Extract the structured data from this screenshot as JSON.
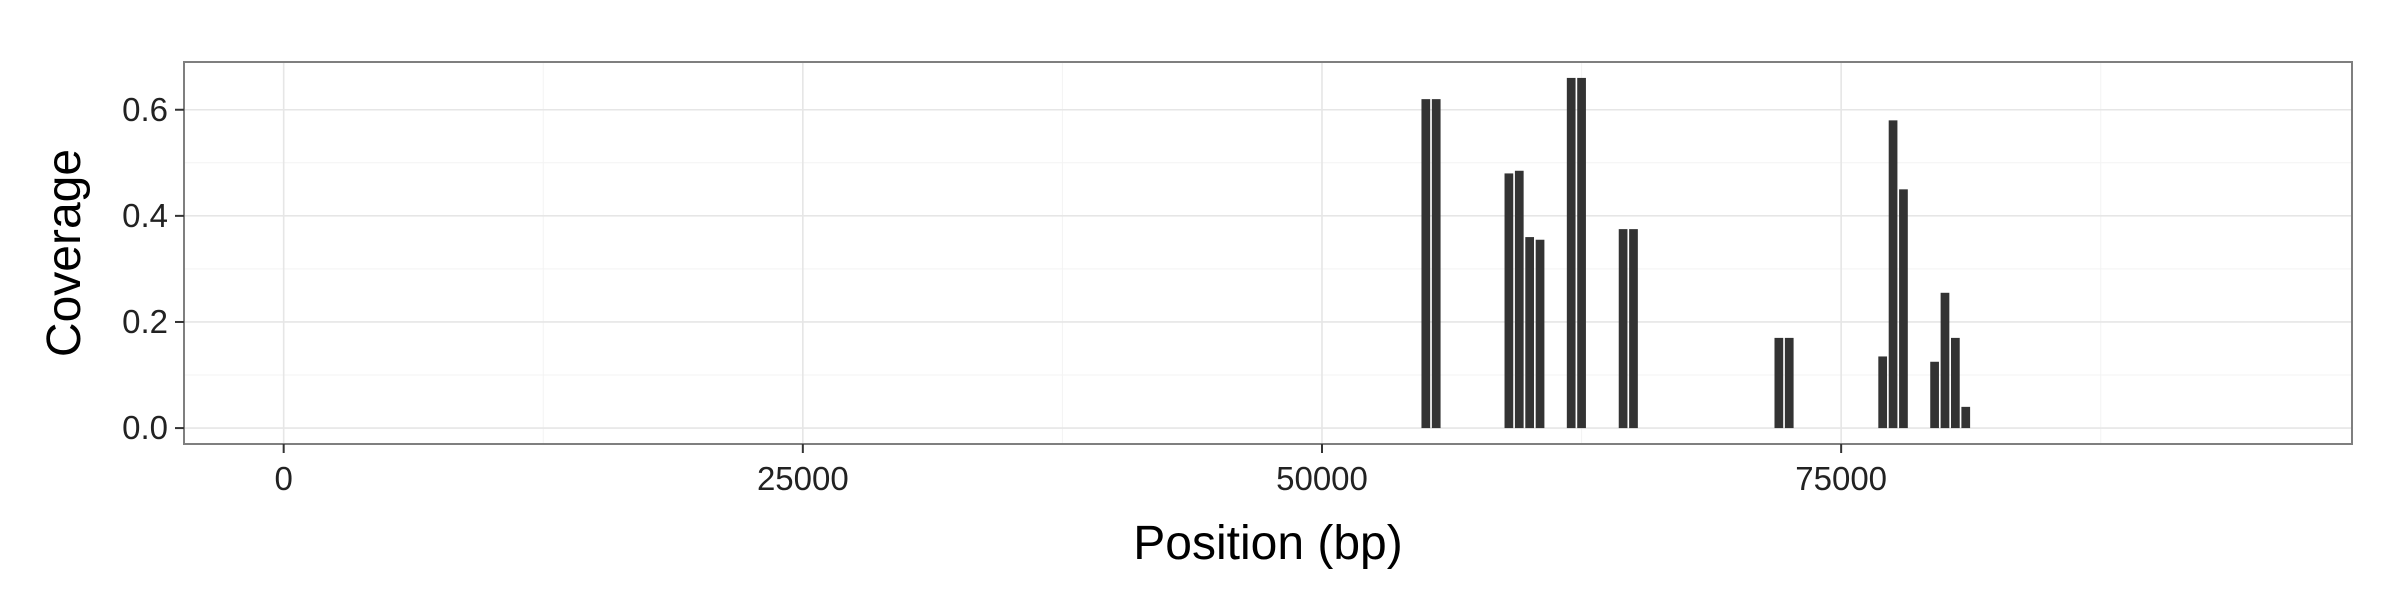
{
  "chart_data": {
    "type": "bar",
    "title": "",
    "xlabel": "Position (bp)",
    "ylabel": "Coverage",
    "xlim": [
      -4800,
      99600
    ],
    "ylim": [
      -0.03,
      0.69
    ],
    "xticks": [
      {
        "value": 0,
        "label": "0"
      },
      {
        "value": 25000,
        "label": "25000"
      },
      {
        "value": 50000,
        "label": "50000"
      },
      {
        "value": 75000,
        "label": "75000"
      }
    ],
    "yticks": [
      {
        "value": 0.0,
        "label": "0.0"
      },
      {
        "value": 0.2,
        "label": "0.2"
      },
      {
        "value": 0.4,
        "label": "0.4"
      },
      {
        "value": 0.6,
        "label": "0.6"
      }
    ],
    "grid": true,
    "bar_width": 420,
    "bar_color": "#333333",
    "bars": [
      {
        "x": 55000,
        "y": 0.62
      },
      {
        "x": 55500,
        "y": 0.62
      },
      {
        "x": 59000,
        "y": 0.48
      },
      {
        "x": 59500,
        "y": 0.485
      },
      {
        "x": 60000,
        "y": 0.36
      },
      {
        "x": 60500,
        "y": 0.355
      },
      {
        "x": 62000,
        "y": 0.66
      },
      {
        "x": 62500,
        "y": 0.66
      },
      {
        "x": 64500,
        "y": 0.375
      },
      {
        "x": 65000,
        "y": 0.375
      },
      {
        "x": 72000,
        "y": 0.17
      },
      {
        "x": 72500,
        "y": 0.17
      },
      {
        "x": 77000,
        "y": 0.135
      },
      {
        "x": 77500,
        "y": 0.58
      },
      {
        "x": 78000,
        "y": 0.45
      },
      {
        "x": 79500,
        "y": 0.125
      },
      {
        "x": 80000,
        "y": 0.255
      },
      {
        "x": 80500,
        "y": 0.17
      },
      {
        "x": 81000,
        "y": 0.04
      }
    ]
  }
}
